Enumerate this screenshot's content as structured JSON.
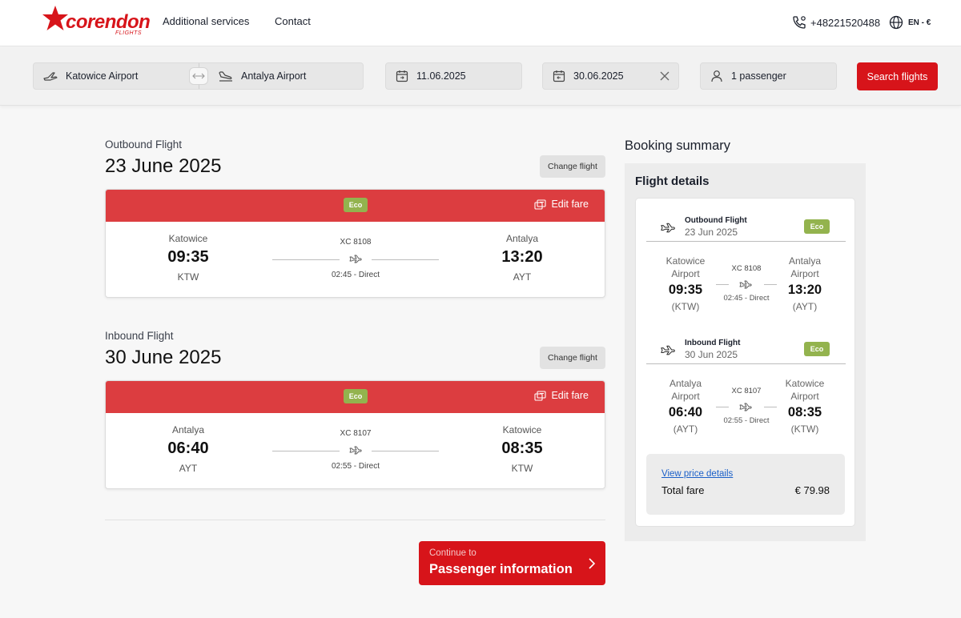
{
  "brand": {
    "name": "corendon",
    "sub": "FLIGHTS",
    "color": "#d7141a"
  },
  "nav": {
    "additional_services": "Additional services",
    "contact": "Contact"
  },
  "header_right": {
    "phone": "+48221520488",
    "language": "EN - €"
  },
  "search": {
    "from": "Katowice Airport",
    "to": "Antalya Airport",
    "depart_date": "11.06.2025",
    "return_date": "30.06.2025",
    "passengers": "1 passenger",
    "search_label": "Search flights"
  },
  "outbound": {
    "label": "Outbound Flight",
    "date": "23 June 2025",
    "change_label": "Change flight",
    "fare_class": "Eco",
    "edit_fare_label": "Edit fare",
    "from_city": "Katowice",
    "from_time": "09:35",
    "from_code": "KTW",
    "flight_no": "XC 8108",
    "duration": "02:45 - Direct",
    "to_city": "Antalya",
    "to_time": "13:20",
    "to_code": "AYT"
  },
  "inbound": {
    "label": "Inbound Flight",
    "date": "30 June 2025",
    "change_label": "Change flight",
    "fare_class": "Eco",
    "edit_fare_label": "Edit fare",
    "from_city": "Antalya",
    "from_time": "06:40",
    "from_code": "AYT",
    "flight_no": "XC 8107",
    "duration": "02:55 - Direct",
    "to_city": "Katowice",
    "to_time": "08:35",
    "to_code": "KTW"
  },
  "continue": {
    "small": "Continue to",
    "big": "Passenger information"
  },
  "summary": {
    "title": "Booking summary",
    "subtitle": "Flight details",
    "outbound": {
      "title": "Outbound Flight",
      "date": "23 Jun 2025",
      "fare_class": "Eco",
      "from_city_1": "Katowice",
      "from_city_2": "Airport",
      "from_time": "09:35",
      "from_code": "(KTW)",
      "flight_no": "XC 8108",
      "duration": "02:45 - Direct",
      "to_city_1": "Antalya",
      "to_city_2": "Airport",
      "to_time": "13:20",
      "to_code": "(AYT)"
    },
    "inbound": {
      "title": "Inbound Flight",
      "date": "30 Jun 2025",
      "fare_class": "Eco",
      "from_city_1": "Antalya",
      "from_city_2": "Airport",
      "from_time": "06:40",
      "from_code": "(AYT)",
      "flight_no": "XC 8107",
      "duration": "02:55 - Direct",
      "to_city_1": "Katowice",
      "to_city_2": "Airport",
      "to_time": "08:35",
      "to_code": "(KTW)"
    },
    "view_price_label": "View price details",
    "total_label": "Total fare",
    "total_value": "€ 79.98"
  },
  "colors": {
    "accent": "#d7141a",
    "card_header": "#dc3d40",
    "eco_badge": "#93b34e",
    "link": "#1a5fc8"
  },
  "icons": [
    "departure-plane-icon",
    "swap-arrows-icon",
    "arrival-plane-icon",
    "calendar-icon",
    "close-icon",
    "user-icon",
    "phone-icon",
    "globe-icon",
    "edit-fare-icon",
    "plane-icon",
    "chevron-right-icon"
  ]
}
